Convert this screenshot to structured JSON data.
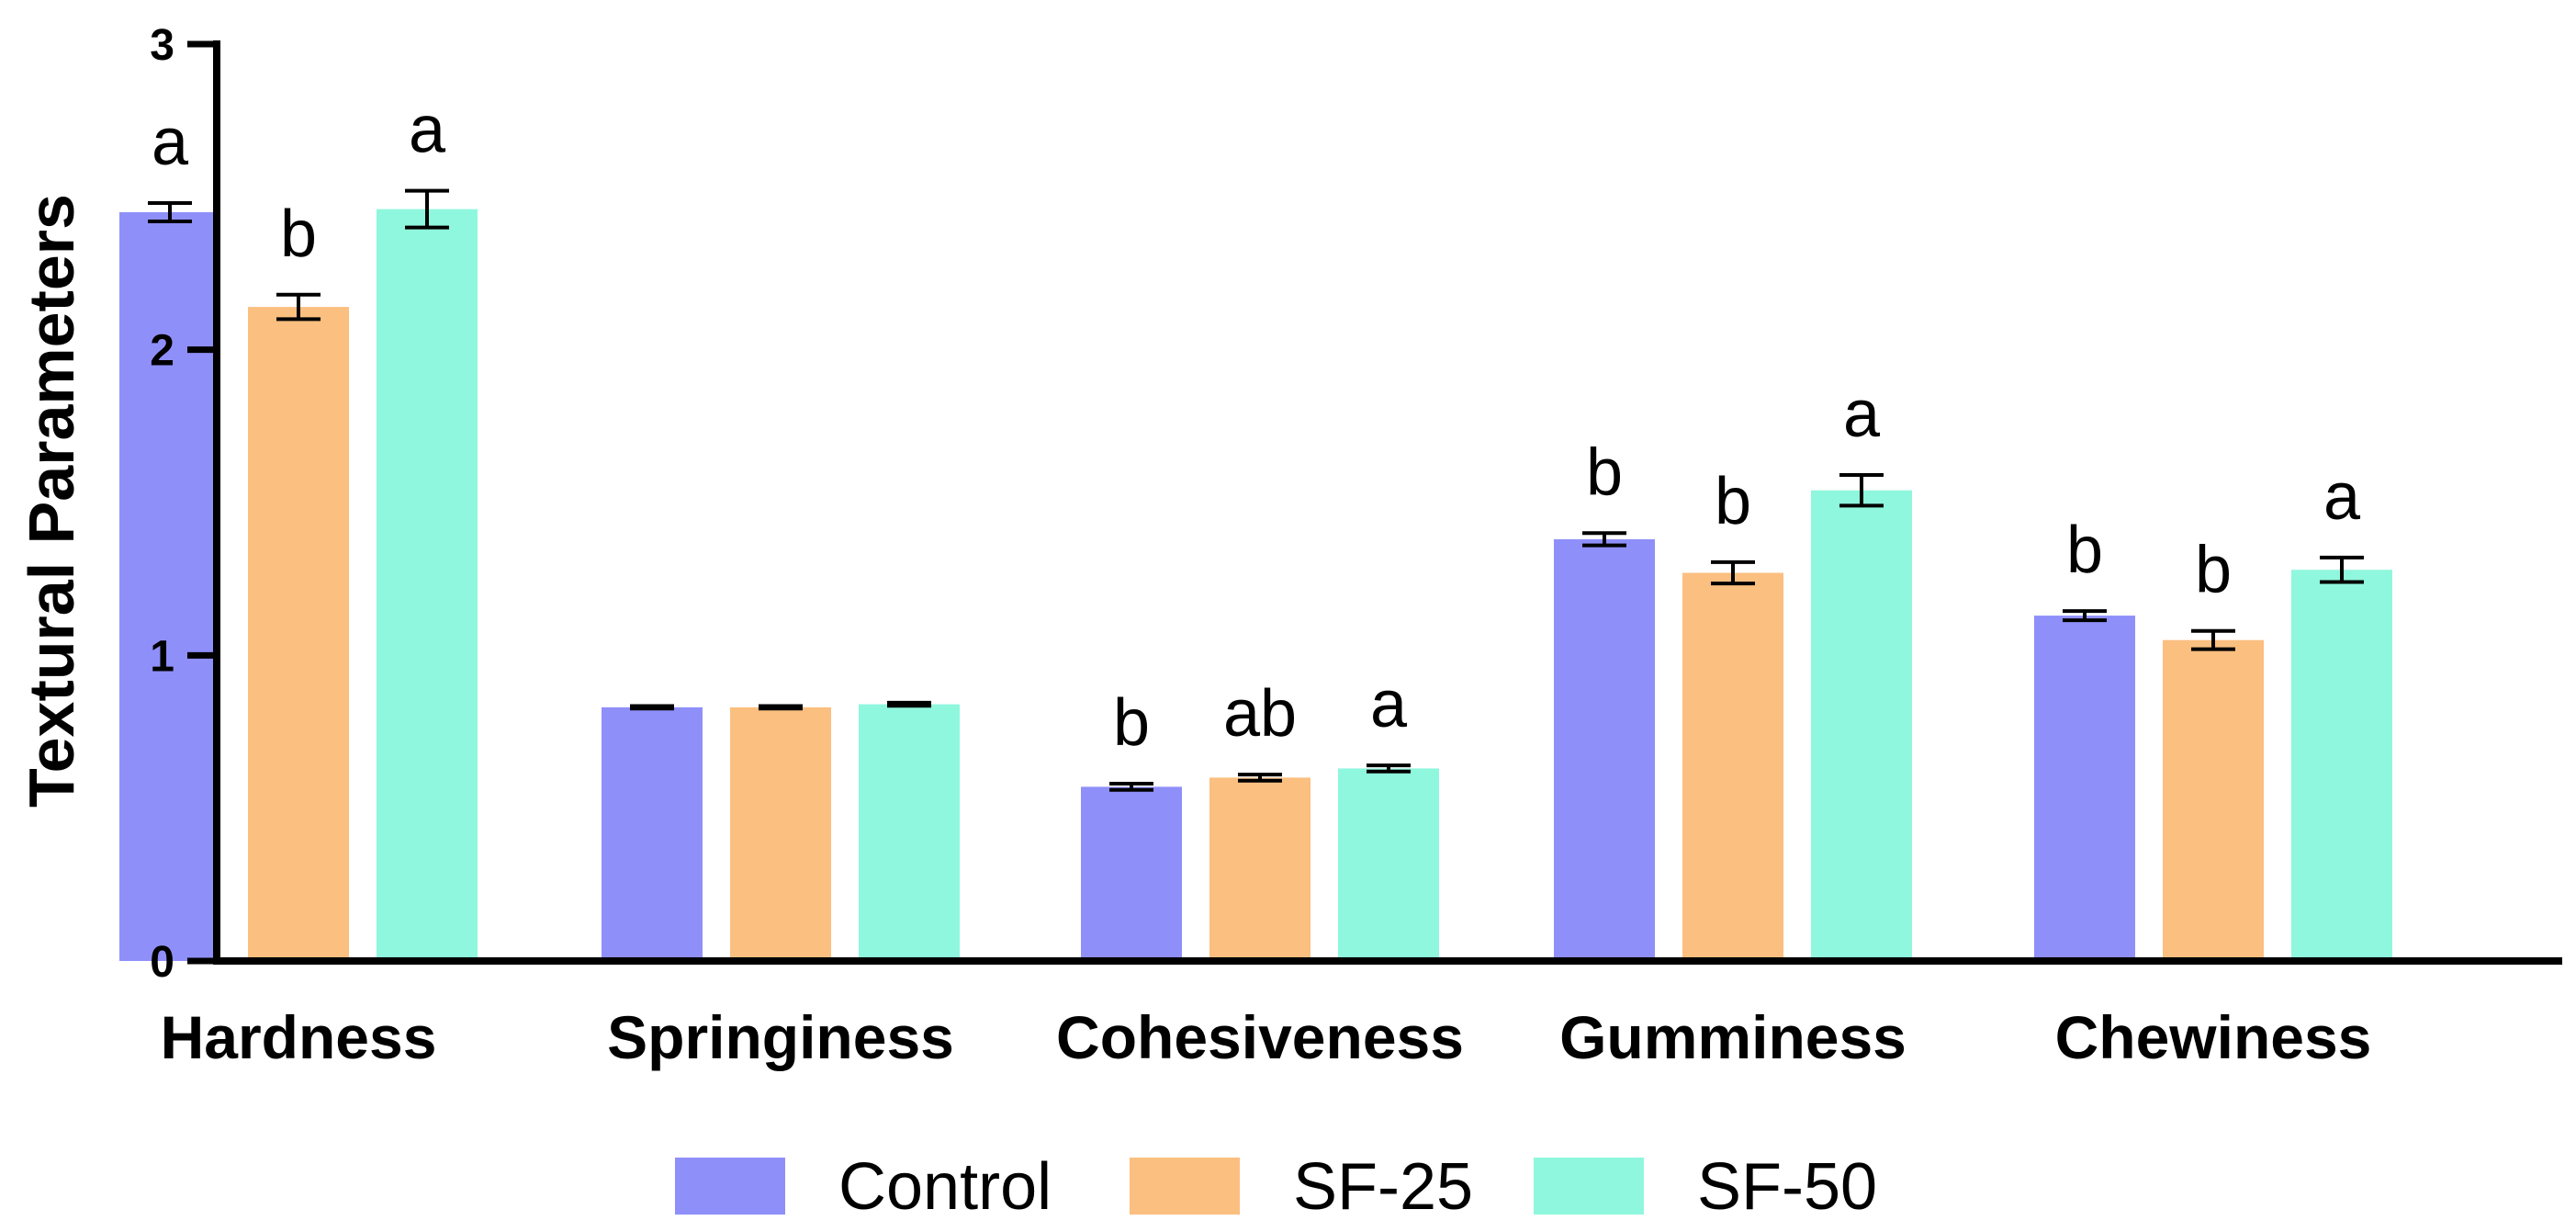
{
  "chart_data": {
    "type": "bar",
    "ylabel": "Textural Parameters",
    "xlabel": "",
    "ylim": [
      0,
      3
    ],
    "yticks": [
      "0",
      "1",
      "2",
      "3"
    ],
    "categories": [
      "Hardness",
      "Springiness",
      "Cohesiveness",
      "Gumminess",
      "Chewiness"
    ],
    "series": [
      {
        "name": "Control",
        "color": "#8f8ffa",
        "values": [
          2.45,
          0.83,
          0.57,
          1.38,
          1.13
        ],
        "errors": [
          0.03,
          0.004,
          0.01,
          0.02,
          0.015
        ],
        "labels": [
          "a",
          "",
          "b",
          "b",
          "b"
        ]
      },
      {
        "name": "SF-25",
        "color": "#fbbf80",
        "values": [
          2.14,
          0.83,
          0.6,
          1.27,
          1.05
        ],
        "errors": [
          0.04,
          0.004,
          0.01,
          0.035,
          0.03
        ],
        "labels": [
          "b",
          "",
          "ab",
          "b",
          "b"
        ]
      },
      {
        "name": "SF-50",
        "color": "#8ff7dd",
        "values": [
          2.46,
          0.84,
          0.63,
          1.54,
          1.28
        ],
        "errors": [
          0.06,
          0.005,
          0.01,
          0.05,
          0.04
        ],
        "labels": [
          "a",
          "",
          "a",
          "a",
          "a"
        ]
      }
    ],
    "legend_placement": "bottom-center",
    "grid": false
  }
}
